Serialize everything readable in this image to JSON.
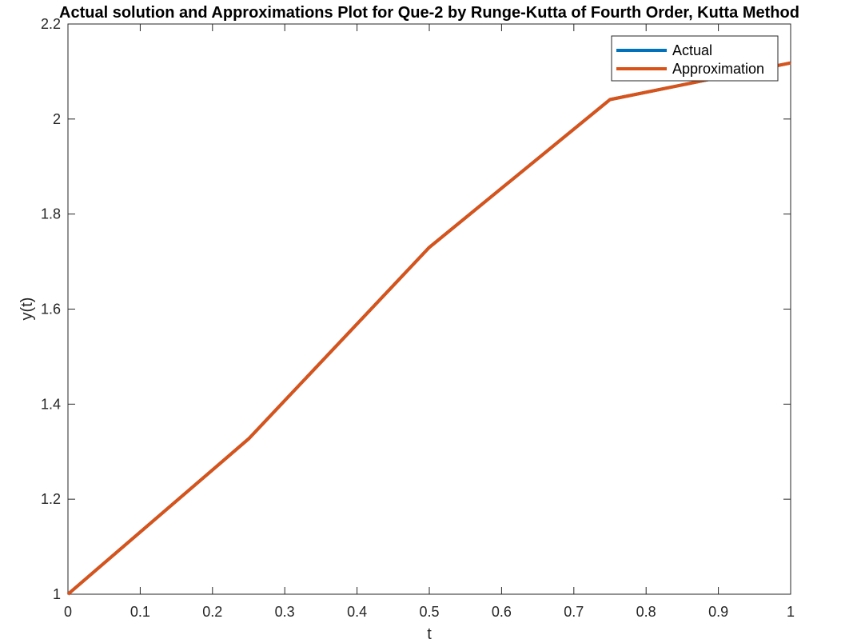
{
  "chart_data": {
    "type": "line",
    "title": "Actual solution and Approximations Plot for Que-2 by Runge-Kutta of Fourth Order, Kutta Method",
    "xlabel": "t",
    "ylabel": "y(t)",
    "xlim": [
      0,
      1
    ],
    "ylim": [
      1,
      2.2
    ],
    "x_ticks": [
      "0",
      "0.1",
      "0.2",
      "0.3",
      "0.4",
      "0.5",
      "0.6",
      "0.7",
      "0.8",
      "0.9",
      "1"
    ],
    "y_ticks": [
      "1",
      "1.2",
      "1.4",
      "1.6",
      "1.8",
      "2",
      "2.2"
    ],
    "grid": false,
    "legend_position": "top-right",
    "x": [
      0,
      0.25,
      0.5,
      0.75,
      1
    ],
    "series": [
      {
        "name": "Actual",
        "color": "#0072BD",
        "values": [
          1,
          1.327,
          1.73,
          2.041,
          2.118
        ]
      },
      {
        "name": "Approximation",
        "color": "#D95319",
        "values": [
          1,
          1.327,
          1.73,
          2.041,
          2.118
        ]
      }
    ]
  }
}
